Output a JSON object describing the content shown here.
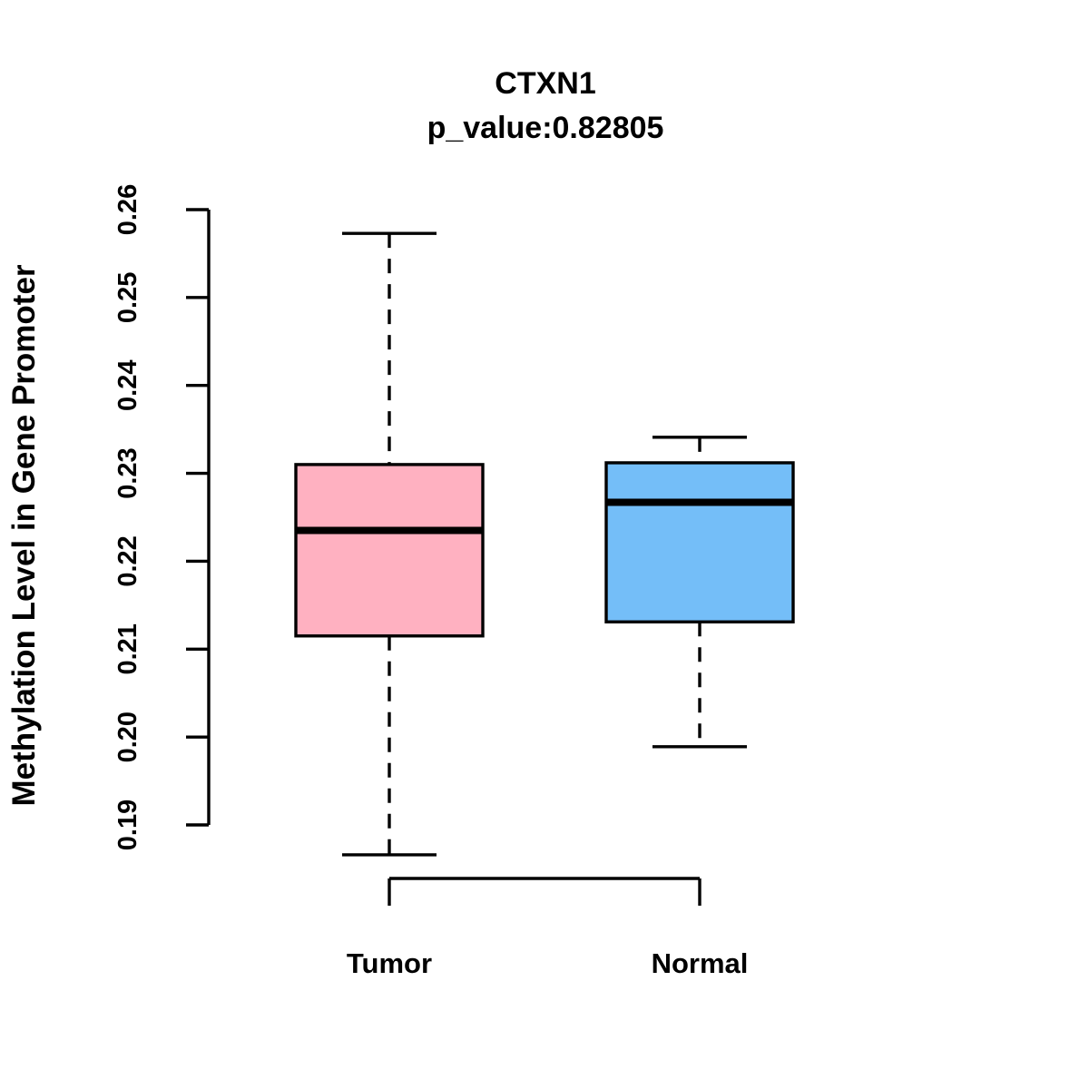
{
  "header": {
    "title": "CTXN1",
    "subtitle": "p_value:0.82805",
    "gene": "CTXN1",
    "p_value": "0.82805"
  },
  "axes": {
    "y_label": "Methylation Level in Gene Promoter",
    "y_tick_labels": [
      "0.19",
      "0.20",
      "0.21",
      "0.22",
      "0.23",
      "0.24",
      "0.25",
      "0.26"
    ]
  },
  "chart_data": {
    "type": "boxplot",
    "title": "CTXN1",
    "subtitle": "p_value:0.82805",
    "ylabel": "Methylation Level in Gene Promoter",
    "xlabel": "",
    "categories": [
      "Tumor",
      "Normal"
    ],
    "yticks": [
      0.19,
      0.2,
      0.21,
      0.22,
      0.23,
      0.24,
      0.25,
      0.26
    ],
    "ylim": [
      0.19,
      0.26
    ],
    "grid": false,
    "legend": "none",
    "series": [
      {
        "name": "Tumor",
        "color": "#FFB1C1",
        "lower_whisker": 0.1866,
        "q1": 0.2115,
        "median": 0.2235,
        "q3": 0.231,
        "upper_whisker": 0.2573
      },
      {
        "name": "Normal",
        "color": "#74BEF8",
        "lower_whisker": 0.1989,
        "q1": 0.2131,
        "median": 0.2267,
        "q3": 0.2312,
        "upper_whisker": 0.2341
      }
    ],
    "colors": {
      "tumor_box": "#FFB1C1",
      "normal_box": "#74BEF8",
      "stroke": "#000000"
    }
  }
}
